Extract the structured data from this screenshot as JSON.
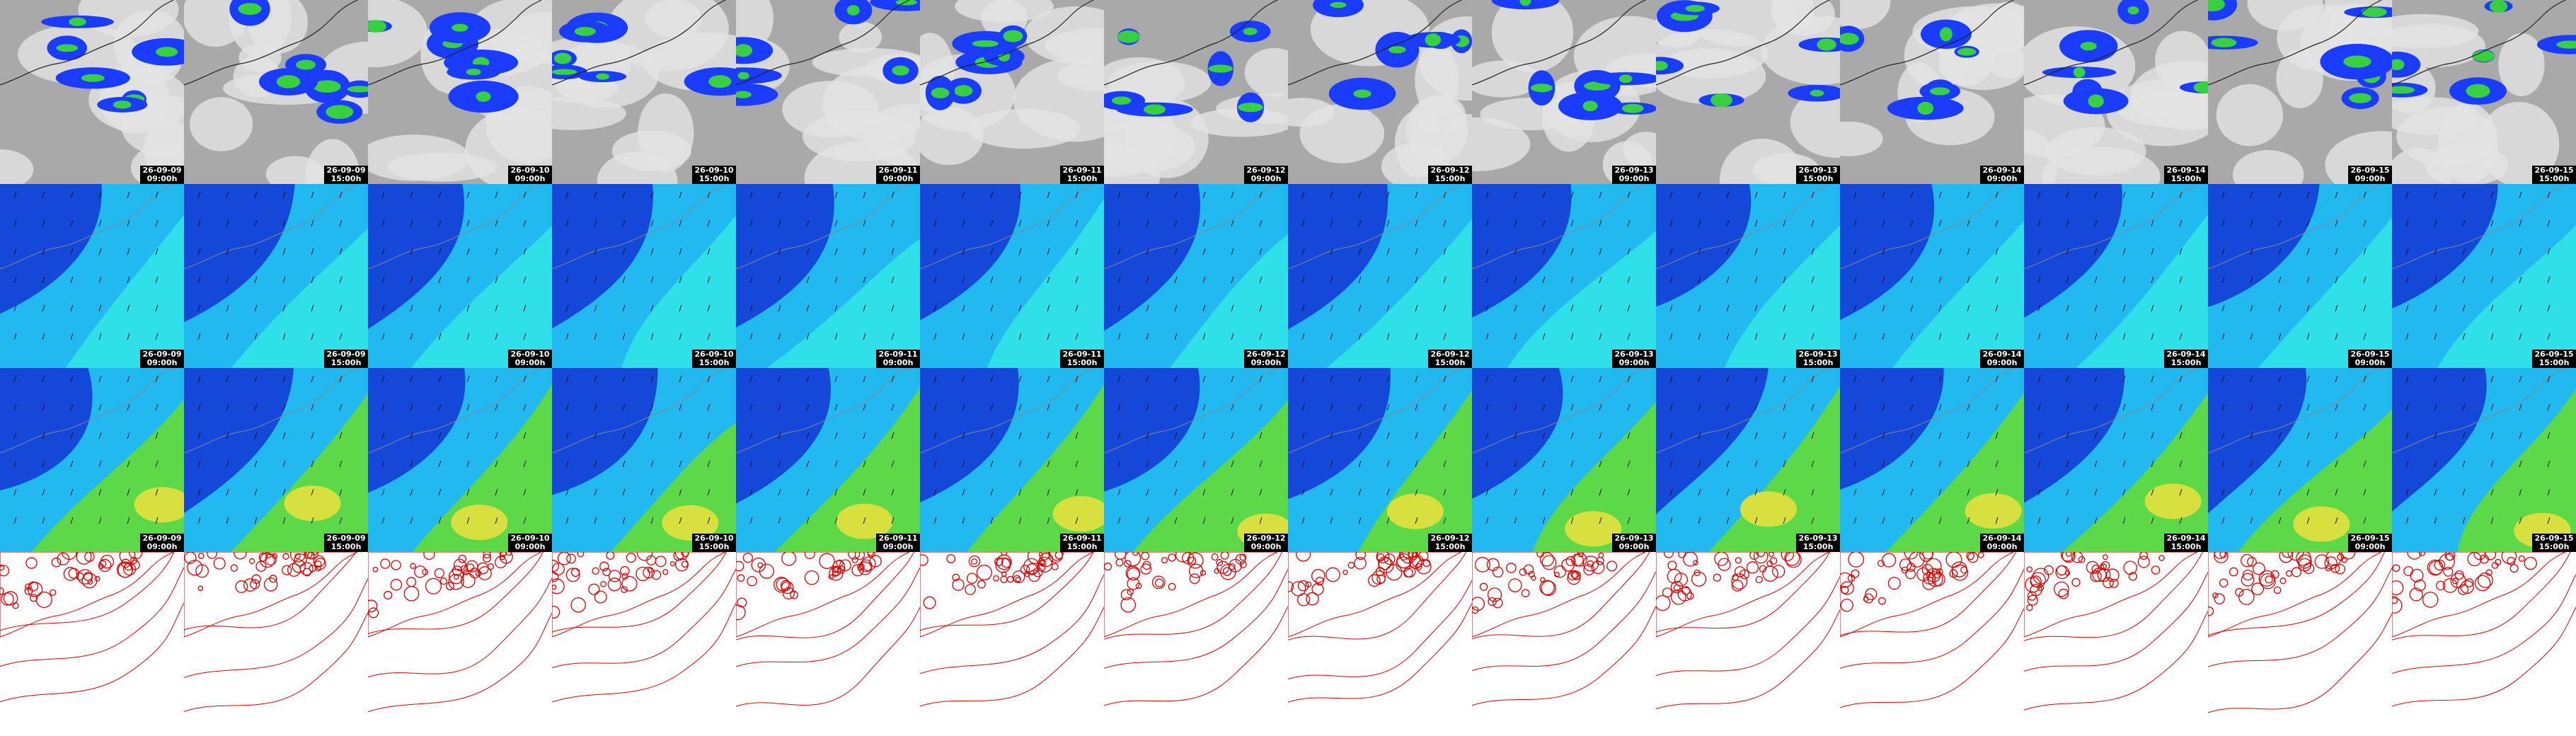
{
  "panels": {
    "columns": [
      {
        "date": "26-09-09",
        "time": "09:00h"
      },
      {
        "date": "26-09-09",
        "time": "15:00h"
      },
      {
        "date": "26-09-10",
        "time": "09:00h"
      },
      {
        "date": "26-09-10",
        "time": "15:00h"
      },
      {
        "date": "26-09-11",
        "time": "09:00h"
      },
      {
        "date": "26-09-11",
        "time": "15:00h"
      },
      {
        "date": "26-09-12",
        "time": "09:00h"
      },
      {
        "date": "26-09-12",
        "time": "15:00h"
      },
      {
        "date": "26-09-13",
        "time": "09:00h"
      },
      {
        "date": "26-09-13",
        "time": "15:00h"
      },
      {
        "date": "26-09-14",
        "time": "09:00h"
      },
      {
        "date": "26-09-14",
        "time": "15:00h"
      },
      {
        "date": "26-09-15",
        "time": "09:00h"
      },
      {
        "date": "26-09-15",
        "time": "15:00h"
      }
    ]
  }
}
